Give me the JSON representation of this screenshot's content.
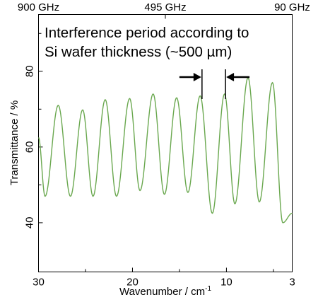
{
  "chart_data": {
    "type": "line",
    "xlabel": "Wavenumber / cm",
    "xlabel_superscript": "-1",
    "ylabel": "Transmittance / %",
    "xlim": [
      30,
      3
    ],
    "ylim": [
      27,
      95
    ],
    "x_ticks": [
      "30",
      "20",
      "10",
      "3"
    ],
    "y_ticks": [
      "40",
      "60",
      "80"
    ],
    "top_axis_labels": [
      "900 GHz",
      "495 GHz",
      "90 GHz"
    ],
    "top_axis_positions_cm": [
      30,
      16.5,
      3
    ],
    "annotation": {
      "lines": [
        "Interference period according to",
        "Si wafer thickness (~500 µm)"
      ],
      "marker_x_cm": [
        12.6,
        10.1
      ]
    },
    "line_color": "#6aa84f",
    "series": [
      {
        "x": [
          30.0,
          29.3,
          27.9,
          26.6,
          25.3,
          24.2,
          22.9,
          21.7,
          20.3,
          19.2,
          17.8,
          16.6,
          15.3,
          14.1,
          12.8,
          11.5,
          10.2,
          9.1,
          7.7,
          6.5,
          5.1,
          4.0,
          3.0
        ],
        "y": [
          62.5,
          47.0,
          71.0,
          47.0,
          69.8,
          47.0,
          72.5,
          47.0,
          72.8,
          48.5,
          74.0,
          47.5,
          73.0,
          48.0,
          73.5,
          42.5,
          74.0,
          45.0,
          78.3,
          45.5,
          77.0,
          40.0,
          42.5
        ]
      }
    ]
  }
}
